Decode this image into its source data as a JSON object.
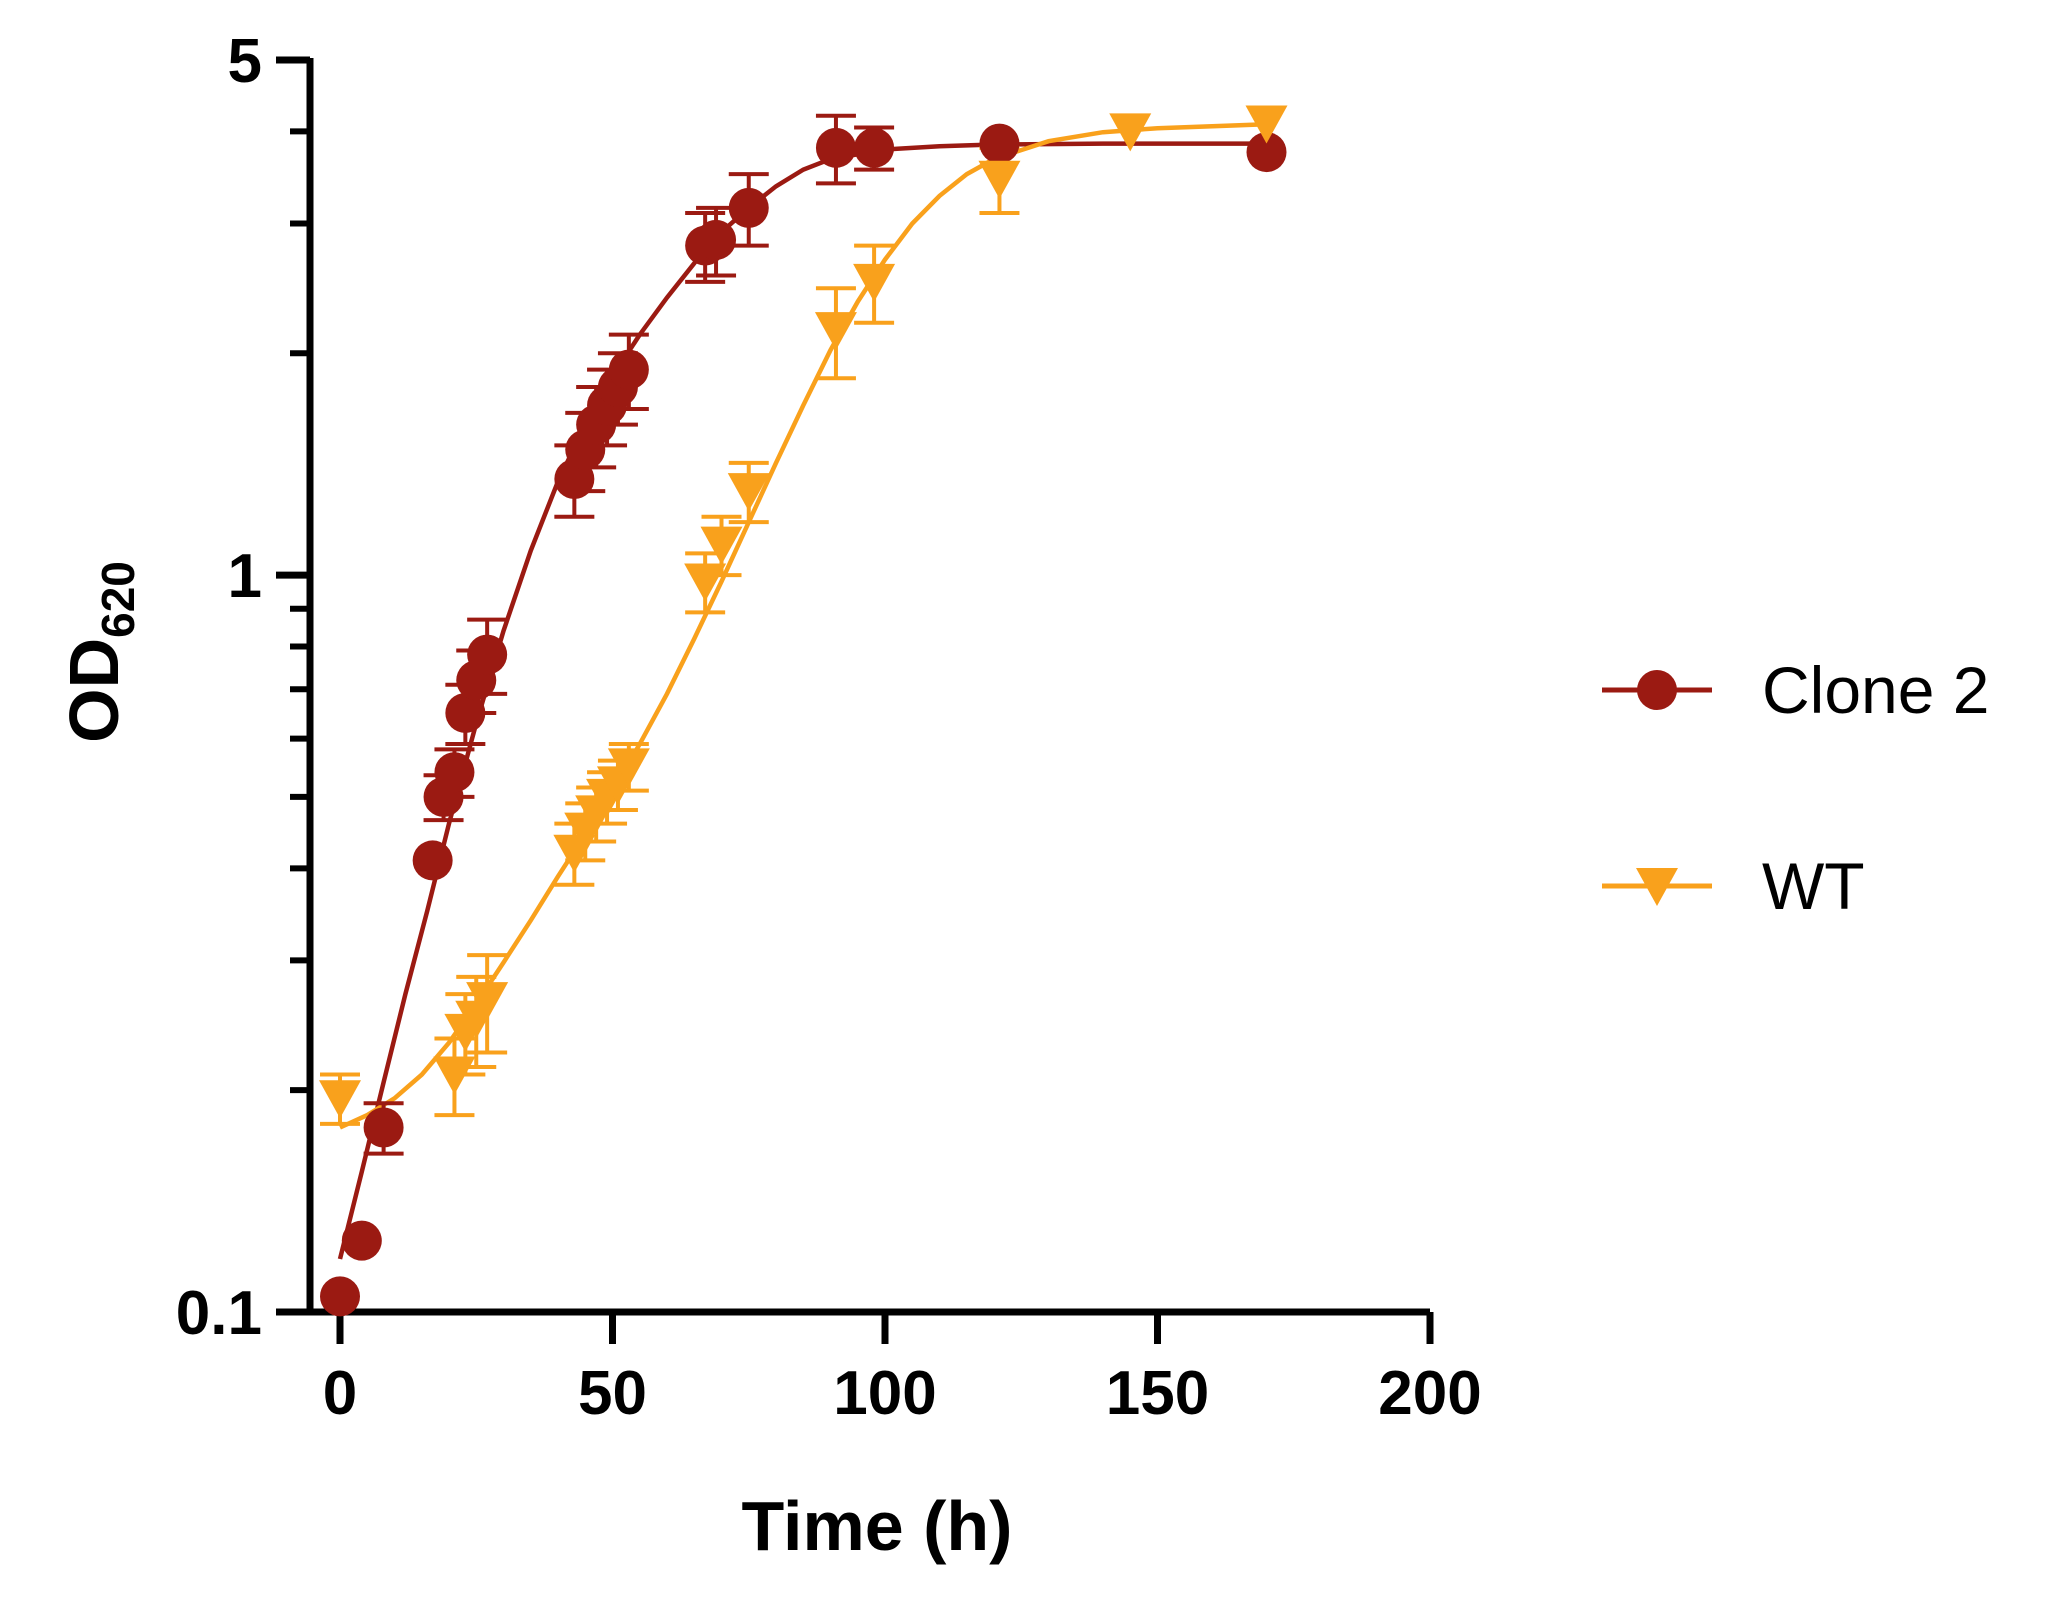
{
  "chart_data": {
    "type": "scatter",
    "title": "",
    "xlabel": "Time (h)",
    "ylabel": {
      "main": "OD",
      "sub": "620"
    },
    "x_scale": "linear",
    "y_scale": "log",
    "xlim": [
      0,
      200
    ],
    "ylim": [
      0.1,
      5
    ],
    "x_ticks": [
      0,
      50,
      100,
      150,
      200
    ],
    "x_tick_labels": [
      "0",
      "50",
      "100",
      "150",
      "200"
    ],
    "y_labeled_ticks": [
      0.1,
      1,
      5
    ],
    "y_tick_labels": [
      "0.1",
      "1",
      "5"
    ],
    "y_minor_ticks": [
      0.2,
      0.3,
      0.4,
      0.5,
      0.6,
      0.7,
      0.8,
      0.9,
      2,
      3,
      4
    ],
    "grid": false,
    "legend_position": "right",
    "series": [
      {
        "name": "Clone 2",
        "color": "#9b1a12",
        "marker": "circle",
        "points": [
          {
            "x": 0,
            "y": 0.105,
            "err": 0
          },
          {
            "x": 4,
            "y": 0.125,
            "err": 0
          },
          {
            "x": 8,
            "y": 0.178,
            "err": 0.014
          },
          {
            "x": 17,
            "y": 0.41,
            "err": 0
          },
          {
            "x": 19,
            "y": 0.5,
            "err": 0.035
          },
          {
            "x": 21,
            "y": 0.54,
            "err": 0.04
          },
          {
            "x": 23,
            "y": 0.65,
            "err": 0.06
          },
          {
            "x": 25,
            "y": 0.72,
            "err": 0.07
          },
          {
            "x": 27,
            "y": 0.78,
            "err": 0.09
          },
          {
            "x": 43,
            "y": 1.35,
            "err": 0.15
          },
          {
            "x": 45,
            "y": 1.48,
            "err": 0.18
          },
          {
            "x": 47,
            "y": 1.6,
            "err": 0.2
          },
          {
            "x": 49,
            "y": 1.7,
            "err": 0.2
          },
          {
            "x": 51,
            "y": 1.8,
            "err": 0.2
          },
          {
            "x": 53,
            "y": 1.9,
            "err": 0.22
          },
          {
            "x": 67,
            "y": 2.8,
            "err": 0.3
          },
          {
            "x": 69,
            "y": 2.85,
            "err": 0.3
          },
          {
            "x": 75,
            "y": 3.15,
            "err": 0.35
          },
          {
            "x": 91,
            "y": 3.8,
            "err": 0.4
          },
          {
            "x": 98,
            "y": 3.8,
            "err": 0.25
          },
          {
            "x": 121,
            "y": 3.85,
            "err": 0
          },
          {
            "x": 170,
            "y": 3.75,
            "err": 0
          }
        ],
        "curve": [
          [
            0,
            0.118
          ],
          [
            4,
            0.155
          ],
          [
            8,
            0.205
          ],
          [
            12,
            0.27
          ],
          [
            16,
            0.35
          ],
          [
            20,
            0.46
          ],
          [
            25,
            0.63
          ],
          [
            30,
            0.84
          ],
          [
            35,
            1.08
          ],
          [
            40,
            1.34
          ],
          [
            45,
            1.6
          ],
          [
            50,
            1.86
          ],
          [
            55,
            2.12
          ],
          [
            60,
            2.38
          ],
          [
            65,
            2.65
          ],
          [
            70,
            2.92
          ],
          [
            75,
            3.15
          ],
          [
            80,
            3.37
          ],
          [
            85,
            3.55
          ],
          [
            90,
            3.67
          ],
          [
            100,
            3.78
          ],
          [
            110,
            3.82
          ],
          [
            120,
            3.84
          ],
          [
            140,
            3.85
          ],
          [
            170,
            3.85
          ]
        ]
      },
      {
        "name": "WT",
        "color": "#f9a11c",
        "marker": "triangle-down",
        "points": [
          {
            "x": 0,
            "y": 0.195,
            "err": 0.015
          },
          {
            "x": 21,
            "y": 0.21,
            "err": 0.025
          },
          {
            "x": 23,
            "y": 0.24,
            "err": 0.03
          },
          {
            "x": 25,
            "y": 0.25,
            "err": 0.035
          },
          {
            "x": 27,
            "y": 0.265,
            "err": 0.04
          },
          {
            "x": 43,
            "y": 0.42,
            "err": 0.04
          },
          {
            "x": 45,
            "y": 0.45,
            "err": 0.04
          },
          {
            "x": 47,
            "y": 0.475,
            "err": 0.04
          },
          {
            "x": 49,
            "y": 0.5,
            "err": 0.04
          },
          {
            "x": 51,
            "y": 0.52,
            "err": 0.04
          },
          {
            "x": 53,
            "y": 0.55,
            "err": 0.04
          },
          {
            "x": 67,
            "y": 0.98,
            "err": 0.09
          },
          {
            "x": 70,
            "y": 1.1,
            "err": 0.1
          },
          {
            "x": 75,
            "y": 1.3,
            "err": 0.12
          },
          {
            "x": 91,
            "y": 2.15,
            "err": 0.3
          },
          {
            "x": 98,
            "y": 2.5,
            "err": 0.3
          },
          {
            "x": 121,
            "y": 3.45,
            "err": 0.35
          },
          {
            "x": 145,
            "y": 4.0,
            "err": 0
          },
          {
            "x": 170,
            "y": 4.1,
            "err": 0
          }
        ],
        "curve": [
          [
            0,
            0.178
          ],
          [
            5,
            0.185
          ],
          [
            10,
            0.195
          ],
          [
            15,
            0.21
          ],
          [
            20,
            0.232
          ],
          [
            25,
            0.262
          ],
          [
            30,
            0.298
          ],
          [
            35,
            0.34
          ],
          [
            40,
            0.39
          ],
          [
            45,
            0.445
          ],
          [
            50,
            0.51
          ],
          [
            55,
            0.59
          ],
          [
            60,
            0.69
          ],
          [
            65,
            0.82
          ],
          [
            70,
            0.98
          ],
          [
            75,
            1.18
          ],
          [
            80,
            1.42
          ],
          [
            85,
            1.7
          ],
          [
            90,
            2.02
          ],
          [
            95,
            2.35
          ],
          [
            100,
            2.68
          ],
          [
            105,
            3.0
          ],
          [
            110,
            3.27
          ],
          [
            115,
            3.5
          ],
          [
            120,
            3.67
          ],
          [
            130,
            3.88
          ],
          [
            140,
            3.99
          ],
          [
            150,
            4.04
          ],
          [
            170,
            4.09
          ]
        ]
      }
    ]
  }
}
